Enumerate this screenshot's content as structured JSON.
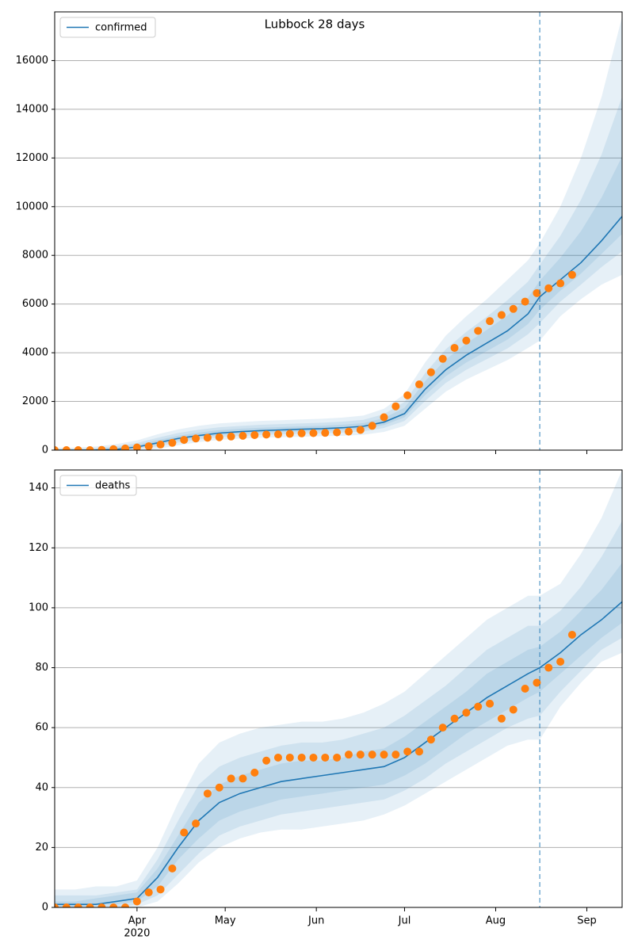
{
  "chart_data": [
    {
      "type": "line",
      "title": "Lubbock 28 days",
      "x": [
        64,
        71,
        78,
        85,
        92,
        99,
        106,
        113,
        120,
        127,
        134,
        141,
        148,
        155,
        162,
        169,
        176,
        183,
        190,
        197,
        204,
        211,
        218,
        225,
        229,
        236,
        243,
        250,
        257
      ],
      "series": [
        {
          "name": "confirmed",
          "color": "#1f77b4",
          "values": [
            0,
            0,
            5,
            30,
            130,
            300,
            480,
            600,
            700,
            760,
            800,
            830,
            860,
            880,
            920,
            980,
            1150,
            1500,
            2500,
            3300,
            3900,
            4400,
            4900,
            5600,
            6300,
            7000,
            7700,
            8600,
            9600
          ]
        }
      ],
      "bands": [
        {
          "lower": [
            0,
            0,
            0,
            0,
            0,
            50,
            200,
            330,
            420,
            470,
            510,
            530,
            550,
            570,
            590,
            630,
            750,
            1000,
            1700,
            2400,
            2900,
            3300,
            3700,
            4200,
            4500,
            5500,
            6200,
            6800,
            7200
          ],
          "upper": [
            100,
            100,
            150,
            250,
            400,
            650,
            850,
            1000,
            1100,
            1150,
            1200,
            1230,
            1260,
            1290,
            1340,
            1420,
            1700,
            2300,
            3600,
            4700,
            5500,
            6200,
            7000,
            7800,
            8500,
            10000,
            12000,
            14500,
            17800
          ]
        },
        {
          "lower": [
            0,
            0,
            2,
            12,
            52,
            150,
            312,
            438,
            532,
            586,
            626,
            650,
            674,
            694,
            722,
            770,
            910,
            1200,
            2020,
            2760,
            3300,
            3740,
            4180,
            4760,
            5220,
            6100,
            6800,
            7520,
            8160
          ],
          "upper": [
            60,
            60,
            92,
            162,
            292,
            510,
            702,
            840,
            940,
            994,
            1040,
            1070,
            1100,
            1126,
            1172,
            1244,
            1480,
            1980,
            3160,
            4140,
            4860,
            5480,
            6160,
            6920,
            7620,
            8800,
            10280,
            12140,
            14520
          ]
        },
        {
          "lower": [
            0,
            0,
            3,
            21,
            91,
            225,
            396,
            519,
            616,
            673,
            713,
            740,
            767,
            787,
            821,
            875,
            1030,
            1350,
            2260,
            3030,
            3600,
            4070,
            4540,
            5180,
            5760,
            6550,
            7250,
            8060,
            8880
          ],
          "upper": [
            30,
            30,
            49,
            96,
            211,
            405,
            591,
            720,
            820,
            877,
            920,
            950,
            980,
            1003,
            1046,
            1112,
            1315,
            1740,
            2830,
            3720,
            4380,
            4940,
            5530,
            6260,
            6960,
            7900,
            8990,
            10370,
            12060
          ]
        }
      ],
      "observed": {
        "color": "#ff7f0e",
        "x": [
          64,
          68,
          72,
          76,
          80,
          84,
          88,
          92,
          96,
          100,
          104,
          108,
          112,
          116,
          120,
          124,
          128,
          132,
          136,
          140,
          144,
          148,
          152,
          156,
          160,
          164,
          168,
          172,
          176,
          180,
          184,
          188,
          192,
          196,
          200,
          204,
          208,
          212,
          216,
          220,
          224,
          228,
          232,
          236,
          240
        ],
        "values": [
          0,
          0,
          0,
          0,
          10,
          40,
          70,
          110,
          160,
          230,
          300,
          420,
          480,
          510,
          530,
          560,
          590,
          620,
          640,
          650,
          670,
          690,
          700,
          710,
          730,
          760,
          830,
          1000,
          1350,
          1800,
          2250,
          2700,
          3200,
          3750,
          4200,
          4500,
          4900,
          5300,
          5550,
          5800,
          6100,
          6450,
          6650,
          6850,
          7200
        ]
      },
      "vline": 229,
      "xlim": [
        64,
        257
      ],
      "xticks": [
        92,
        122,
        153,
        183,
        214,
        245
      ],
      "ylim": [
        0,
        18000
      ],
      "yticks": [
        0,
        2000,
        4000,
        6000,
        8000,
        10000,
        12000,
        14000,
        16000
      ],
      "grid": true,
      "legend": "upper left"
    },
    {
      "type": "line",
      "x": [
        64,
        71,
        78,
        85,
        92,
        99,
        106,
        113,
        120,
        127,
        134,
        141,
        148,
        155,
        162,
        169,
        176,
        183,
        190,
        197,
        204,
        211,
        218,
        225,
        229,
        236,
        243,
        250,
        257
      ],
      "series": [
        {
          "name": "deaths",
          "color": "#1f77b4",
          "values": [
            1,
            1,
            1,
            2,
            3,
            10,
            20,
            29,
            35,
            38,
            40,
            42,
            43,
            44,
            45,
            46,
            47,
            50,
            55,
            60,
            65,
            70,
            74,
            78,
            80,
            85,
            91,
            96,
            102
          ]
        }
      ],
      "bands": [
        {
          "lower": [
            0,
            0,
            0,
            0,
            0,
            2,
            8,
            15,
            20,
            23,
            25,
            26,
            26,
            27,
            28,
            29,
            31,
            34,
            38,
            42,
            46,
            50,
            54,
            56,
            56,
            67,
            75,
            82,
            85
          ],
          "upper": [
            6,
            6,
            7,
            7,
            9,
            20,
            35,
            48,
            55,
            58,
            60,
            61,
            62,
            62,
            63,
            65,
            68,
            72,
            78,
            84,
            90,
            96,
            100,
            104,
            104,
            108,
            118,
            130,
            146
          ]
        },
        {
          "lower": [
            0,
            0,
            0,
            0,
            1,
            4,
            11,
            18,
            24,
            27,
            29,
            31,
            32,
            33,
            34,
            35,
            36,
            39,
            43,
            48,
            52,
            56,
            60,
            63,
            64,
            72,
            79,
            86,
            90
          ],
          "upper": [
            4,
            4,
            4,
            5,
            6,
            16,
            29,
            41,
            47,
            50,
            52,
            54,
            55,
            55,
            56,
            58,
            60,
            64,
            69,
            74,
            80,
            86,
            90,
            94,
            94,
            99,
            107,
            117,
            129
          ]
        },
        {
          "lower": [
            0,
            0,
            1,
            1,
            2,
            7,
            16,
            23,
            29,
            32,
            34,
            36,
            37,
            38,
            39,
            40,
            41,
            44,
            48,
            53,
            58,
            62,
            66,
            70,
            72,
            78,
            84,
            90,
            95
          ],
          "upper": [
            2,
            2,
            3,
            4,
            5,
            13,
            24,
            35,
            41,
            44,
            46,
            48,
            49,
            49,
            50,
            52,
            53,
            57,
            62,
            67,
            72,
            78,
            82,
            86,
            87,
            92,
            99,
            106,
            115
          ]
        }
      ],
      "observed": {
        "color": "#ff7f0e",
        "x": [
          64,
          68,
          72,
          76,
          80,
          84,
          88,
          92,
          96,
          100,
          104,
          108,
          112,
          116,
          120,
          124,
          128,
          132,
          136,
          140,
          144,
          148,
          152,
          156,
          160,
          164,
          168,
          172,
          176,
          180,
          184,
          188,
          192,
          196,
          200,
          204,
          208,
          212,
          216,
          220,
          224,
          228,
          232,
          236,
          240
        ],
        "values": [
          0,
          0,
          0,
          0,
          0,
          0,
          0,
          2,
          5,
          6,
          13,
          25,
          28,
          38,
          40,
          43,
          43,
          45,
          49,
          50,
          50,
          50,
          50,
          50,
          50,
          51,
          51,
          51,
          51,
          51,
          52,
          52,
          56,
          60,
          63,
          65,
          67,
          68,
          63,
          66,
          73,
          75,
          80,
          82,
          91
        ]
      },
      "vline": 229,
      "xlim": [
        64,
        257
      ],
      "xticks": [
        {
          "value": 92,
          "label": "Apr"
        },
        {
          "value": 122,
          "label": "May"
        },
        {
          "value": 153,
          "label": "Jun"
        },
        {
          "value": 183,
          "label": "Jul"
        },
        {
          "value": 214,
          "label": "Aug"
        },
        {
          "value": 245,
          "label": "Sep"
        }
      ],
      "xtick_sublabel": {
        "value": 92,
        "label": "2020"
      },
      "ylim": [
        0,
        146
      ],
      "yticks": [
        0,
        20,
        40,
        60,
        80,
        100,
        120,
        140
      ],
      "grid": true,
      "legend": "upper left"
    }
  ]
}
